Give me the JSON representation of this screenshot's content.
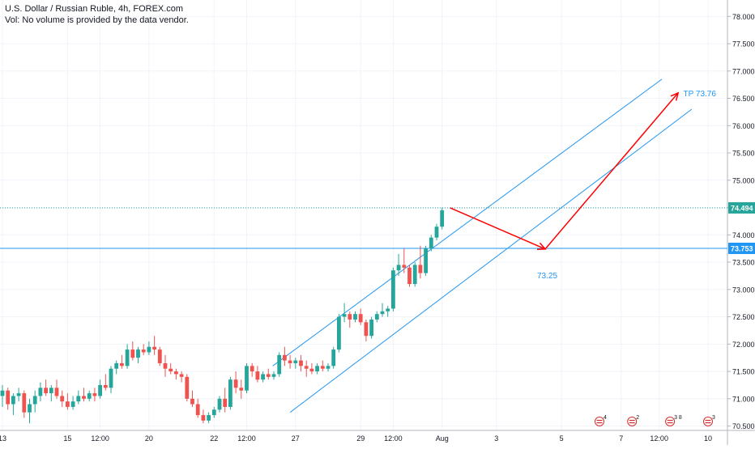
{
  "legend": {
    "title": "U.S. Dollar / Russian Ruble, 4h, FOREX.com",
    "volume_note": "Vol: No volume is provided by the data vendor."
  },
  "colors": {
    "up": "#26a69a",
    "down": "#ef5350",
    "channel": "#2196f3",
    "arrow": "#ff0000",
    "grid": "#f0f3fa",
    "axis_text": "#131722",
    "price_badge": "#26a69a",
    "level_badge": "#2196f3",
    "event_icon": "#d32f2f"
  },
  "chart_data": {
    "type": "candlestick",
    "title": "U.S. Dollar / Russian Ruble, 4h, FOREX.com",
    "y_axis": {
      "range": [
        70.42,
        78.3
      ],
      "ticks": [
        "70.500",
        "71.000",
        "71.500",
        "72.000",
        "72.500",
        "73.000",
        "73.500",
        "74.000",
        "74.500",
        "75.000",
        "75.500",
        "76.000",
        "76.500",
        "77.000",
        "77.500",
        "78.000"
      ]
    },
    "x_axis": {
      "ticks": [
        {
          "label": "13",
          "i": 0
        },
        {
          "label": "15",
          "i": 12
        },
        {
          "label": "12:00",
          "i": 18
        },
        {
          "label": "20",
          "i": 27
        },
        {
          "label": "22",
          "i": 39
        },
        {
          "label": "12:00",
          "i": 45
        },
        {
          "label": "27",
          "i": 54
        },
        {
          "label": "29",
          "i": 66
        },
        {
          "label": "12:00",
          "i": 72
        },
        {
          "label": "Aug",
          "i": 81
        },
        {
          "label": "3",
          "i": 91
        },
        {
          "label": "5",
          "i": 103
        },
        {
          "label": "7",
          "i": 114
        },
        {
          "label": "12:00",
          "i": 121
        },
        {
          "label": "10",
          "i": 130
        }
      ]
    },
    "candles": [
      [
        71.05,
        71.25,
        70.85,
        71.15
      ],
      [
        71.15,
        71.2,
        70.8,
        70.9
      ],
      [
        70.9,
        71.1,
        70.7,
        71.05
      ],
      [
        71.05,
        71.2,
        70.95,
        71.1
      ],
      [
        71.1,
        71.15,
        70.65,
        70.75
      ],
      [
        70.75,
        71.0,
        70.55,
        70.9
      ],
      [
        70.9,
        71.15,
        70.75,
        71.05
      ],
      [
        71.05,
        71.3,
        70.95,
        71.2
      ],
      [
        71.2,
        71.35,
        71.05,
        71.1
      ],
      [
        71.1,
        71.25,
        70.95,
        71.2
      ],
      [
        71.2,
        71.35,
        71.0,
        71.05
      ],
      [
        71.05,
        71.15,
        70.85,
        70.95
      ],
      [
        70.95,
        71.1,
        70.8,
        70.85
      ],
      [
        70.85,
        71.05,
        70.8,
        70.95
      ],
      [
        70.95,
        71.15,
        70.9,
        71.05
      ],
      [
        71.05,
        71.2,
        70.95,
        71.0
      ],
      [
        71.0,
        71.15,
        70.95,
        71.1
      ],
      [
        71.1,
        71.2,
        70.95,
        71.05
      ],
      [
        71.05,
        71.35,
        71.0,
        71.25
      ],
      [
        71.25,
        71.45,
        71.15,
        71.2
      ],
      [
        71.2,
        71.6,
        71.1,
        71.55
      ],
      [
        71.55,
        71.7,
        71.45,
        71.65
      ],
      [
        71.65,
        71.8,
        71.55,
        71.6
      ],
      [
        71.6,
        72.0,
        71.55,
        71.9
      ],
      [
        71.9,
        72.05,
        71.7,
        71.75
      ],
      [
        71.75,
        71.95,
        71.65,
        71.9
      ],
      [
        71.9,
        72.0,
        71.8,
        71.85
      ],
      [
        71.85,
        72.05,
        71.8,
        71.95
      ],
      [
        71.95,
        72.15,
        71.8,
        71.9
      ],
      [
        71.9,
        71.95,
        71.6,
        71.65
      ],
      [
        71.65,
        71.8,
        71.4,
        71.55
      ],
      [
        71.55,
        71.65,
        71.45,
        71.5
      ],
      [
        71.5,
        71.55,
        71.35,
        71.45
      ],
      [
        71.45,
        71.5,
        71.3,
        71.4
      ],
      [
        71.4,
        71.45,
        70.95,
        71.0
      ],
      [
        71.0,
        71.15,
        70.85,
        70.9
      ],
      [
        70.9,
        71.0,
        70.65,
        70.7
      ],
      [
        70.7,
        70.8,
        70.55,
        70.6
      ],
      [
        70.6,
        70.75,
        70.55,
        70.7
      ],
      [
        70.7,
        70.85,
        70.65,
        70.8
      ],
      [
        70.8,
        71.05,
        70.75,
        71.0
      ],
      [
        71.0,
        71.2,
        70.75,
        70.85
      ],
      [
        70.85,
        71.4,
        70.8,
        71.35
      ],
      [
        71.35,
        71.5,
        71.1,
        71.2
      ],
      [
        71.2,
        71.35,
        71.0,
        71.15
      ],
      [
        71.15,
        71.65,
        71.1,
        71.6
      ],
      [
        71.6,
        71.65,
        71.4,
        71.5
      ],
      [
        71.5,
        71.6,
        71.3,
        71.35
      ],
      [
        71.35,
        71.5,
        71.3,
        71.45
      ],
      [
        71.45,
        71.55,
        71.35,
        71.4
      ],
      [
        71.4,
        71.5,
        71.35,
        71.45
      ],
      [
        71.45,
        71.85,
        71.4,
        71.8
      ],
      [
        71.8,
        71.95,
        71.6,
        71.7
      ],
      [
        71.7,
        71.8,
        71.55,
        71.65
      ],
      [
        71.65,
        71.75,
        71.55,
        71.7
      ],
      [
        71.7,
        71.8,
        71.5,
        71.6
      ],
      [
        71.6,
        71.7,
        71.4,
        71.55
      ],
      [
        71.55,
        71.65,
        71.45,
        71.5
      ],
      [
        71.5,
        71.65,
        71.45,
        71.6
      ],
      [
        71.6,
        71.7,
        71.5,
        71.55
      ],
      [
        71.55,
        71.65,
        71.5,
        71.6
      ],
      [
        71.6,
        71.95,
        71.55,
        71.9
      ],
      [
        71.9,
        72.55,
        71.85,
        72.5
      ],
      [
        72.5,
        72.75,
        72.4,
        72.55
      ],
      [
        72.55,
        72.6,
        72.3,
        72.45
      ],
      [
        72.45,
        72.6,
        72.4,
        72.55
      ],
      [
        72.55,
        72.65,
        72.35,
        72.4
      ],
      [
        72.4,
        72.45,
        72.05,
        72.15
      ],
      [
        72.15,
        72.5,
        72.1,
        72.45
      ],
      [
        72.45,
        72.6,
        72.4,
        72.55
      ],
      [
        72.55,
        72.75,
        72.5,
        72.6
      ],
      [
        72.6,
        72.7,
        72.5,
        72.65
      ],
      [
        72.65,
        73.4,
        72.6,
        73.35
      ],
      [
        73.35,
        73.65,
        73.25,
        73.45
      ],
      [
        73.45,
        73.75,
        73.3,
        73.4
      ],
      [
        73.4,
        73.45,
        73.05,
        73.1
      ],
      [
        73.1,
        73.5,
        73.05,
        73.45
      ],
      [
        73.45,
        73.8,
        73.2,
        73.3
      ],
      [
        73.3,
        73.8,
        73.25,
        73.75
      ],
      [
        73.75,
        74.0,
        73.7,
        73.95
      ],
      [
        73.95,
        74.2,
        73.9,
        74.15
      ],
      [
        74.15,
        74.5,
        74.1,
        74.45
      ]
    ],
    "channel": {
      "upper": [
        {
          "i": 49.8,
          "price": 71.6
        },
        {
          "i": 121.5,
          "price": 76.85
        }
      ],
      "lower": [
        {
          "i": 53,
          "price": 70.75
        },
        {
          "i": 127,
          "price": 76.3
        }
      ]
    },
    "levels": [
      {
        "price": 74.494,
        "label": "74.494",
        "style": "dotted"
      },
      {
        "price": 73.753,
        "label": "73.753",
        "style": "solid"
      }
    ],
    "projection": [
      {
        "i": 82.5,
        "price": 74.494
      },
      {
        "i": 100,
        "price": 73.74
      },
      {
        "i": 124.5,
        "price": 76.6
      }
    ],
    "annotations": [
      {
        "text": "73.25",
        "i": 100,
        "price": 73.25
      },
      {
        "text": "TP 73.76",
        "i": 125,
        "price": 76.6
      }
    ],
    "events": [
      {
        "i": 110,
        "count": "4"
      },
      {
        "i": 116,
        "count": "2"
      },
      {
        "i": 123,
        "count": "3 8"
      },
      {
        "i": 130,
        "count": "3"
      }
    ]
  }
}
